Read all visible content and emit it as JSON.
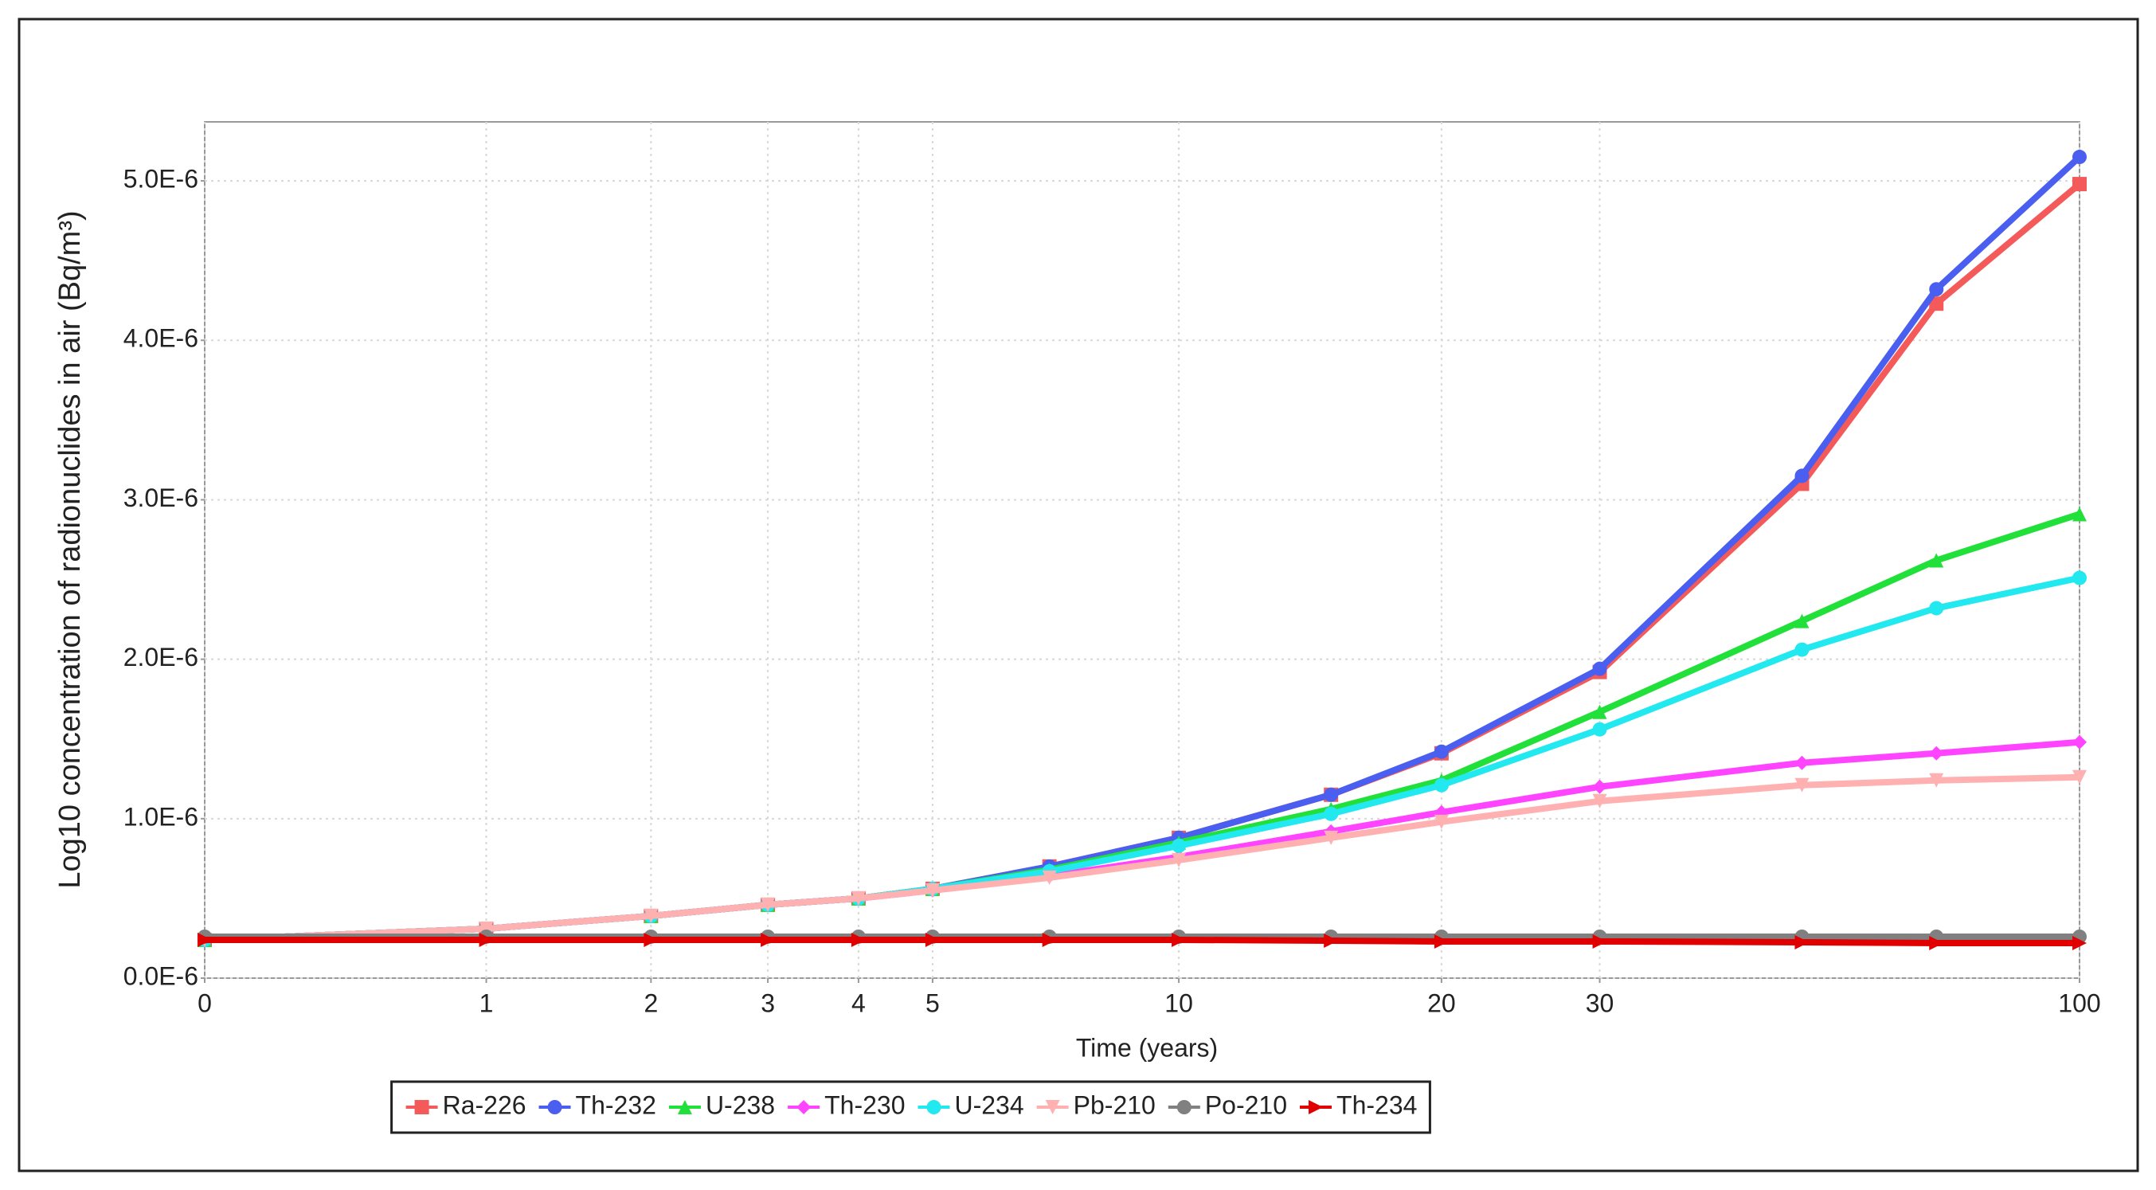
{
  "chart_data": {
    "type": "line",
    "x_label": "Time (years)",
    "y_label": "Log10 concentration of radionuclides in air (Bq/m³)",
    "x": [
      0,
      1,
      2,
      3,
      4,
      5,
      7,
      10,
      15,
      20,
      30,
      50,
      70,
      100
    ],
    "xlim": [
      0,
      100
    ],
    "xticks": [
      0,
      1,
      2,
      3,
      4,
      5,
      10,
      20,
      30,
      100
    ],
    "xscale": "log1p",
    "ylim": [
      0,
      5.37e-06
    ],
    "yticks": [
      {
        "value": 0,
        "label": "0.0E-6"
      },
      {
        "value": 1e-06,
        "label": "1.0E-6"
      },
      {
        "value": 2e-06,
        "label": "2.0E-6"
      },
      {
        "value": 3e-06,
        "label": "3.0E-6"
      },
      {
        "value": 4e-06,
        "label": "4.0E-6"
      },
      {
        "value": 5e-06,
        "label": "5.0E-6"
      }
    ],
    "grid": true,
    "legend": "bottom",
    "series": [
      {
        "name": "Ra-226",
        "color": "#f55a5a",
        "marker": "square",
        "values": [
          2.4e-07,
          3.1e-07,
          3.9e-07,
          4.6e-07,
          5e-07,
          5.6e-07,
          7e-07,
          8.8e-07,
          1.15e-06,
          1.41e-06,
          1.92e-06,
          3.1e-06,
          4.23e-06,
          4.98e-06
        ]
      },
      {
        "name": "Th-232",
        "color": "#4a5ef0",
        "marker": "circle",
        "values": [
          2.4e-07,
          3.1e-07,
          3.9e-07,
          4.6e-07,
          5e-07,
          5.6e-07,
          7e-07,
          8.8e-07,
          1.15e-06,
          1.42e-06,
          1.94e-06,
          3.15e-06,
          4.32e-06,
          5.15e-06
        ]
      },
      {
        "name": "U-238",
        "color": "#22e03a",
        "marker": "triangle-up",
        "values": [
          2.4e-07,
          3.1e-07,
          3.9e-07,
          4.6e-07,
          5e-07,
          5.6e-07,
          6.8e-07,
          8.5e-07,
          1.06e-06,
          1.24e-06,
          1.67e-06,
          2.24e-06,
          2.62e-06,
          2.91e-06
        ]
      },
      {
        "name": "Th-230",
        "color": "#ff44ff",
        "marker": "diamond",
        "values": [
          2.4e-07,
          3.1e-07,
          3.9e-07,
          4.6e-07,
          5e-07,
          5.5e-07,
          6.4e-07,
          7.6e-07,
          9.2e-07,
          1.04e-06,
          1.2e-06,
          1.35e-06,
          1.41e-06,
          1.48e-06
        ]
      },
      {
        "name": "U-234",
        "color": "#22e8f0",
        "marker": "circle",
        "values": [
          2.4e-07,
          3.1e-07,
          3.9e-07,
          4.6e-07,
          5e-07,
          5.6e-07,
          6.7e-07,
          8.3e-07,
          1.03e-06,
          1.21e-06,
          1.56e-06,
          2.06e-06,
          2.32e-06,
          2.51e-06
        ]
      },
      {
        "name": "Pb-210",
        "color": "#ffb0b0",
        "marker": "triangle-down",
        "values": [
          2.4e-07,
          3.1e-07,
          3.9e-07,
          4.6e-07,
          5e-07,
          5.5e-07,
          6.3e-07,
          7.4e-07,
          8.8e-07,
          9.8e-07,
          1.11e-06,
          1.21e-06,
          1.24e-06,
          1.26e-06
        ]
      },
      {
        "name": "Po-210",
        "color": "#808080",
        "marker": "circle",
        "values": [
          2.6e-07,
          2.6e-07,
          2.6e-07,
          2.6e-07,
          2.6e-07,
          2.6e-07,
          2.6e-07,
          2.6e-07,
          2.6e-07,
          2.6e-07,
          2.6e-07,
          2.6e-07,
          2.6e-07,
          2.6e-07
        ]
      },
      {
        "name": "Th-234",
        "color": "#e00000",
        "marker": "triangle-right",
        "values": [
          2.4e-07,
          2.4e-07,
          2.4e-07,
          2.4e-07,
          2.4e-07,
          2.4e-07,
          2.4e-07,
          2.4e-07,
          2.35e-07,
          2.3e-07,
          2.3e-07,
          2.25e-07,
          2.2e-07,
          2.2e-07
        ]
      }
    ]
  }
}
